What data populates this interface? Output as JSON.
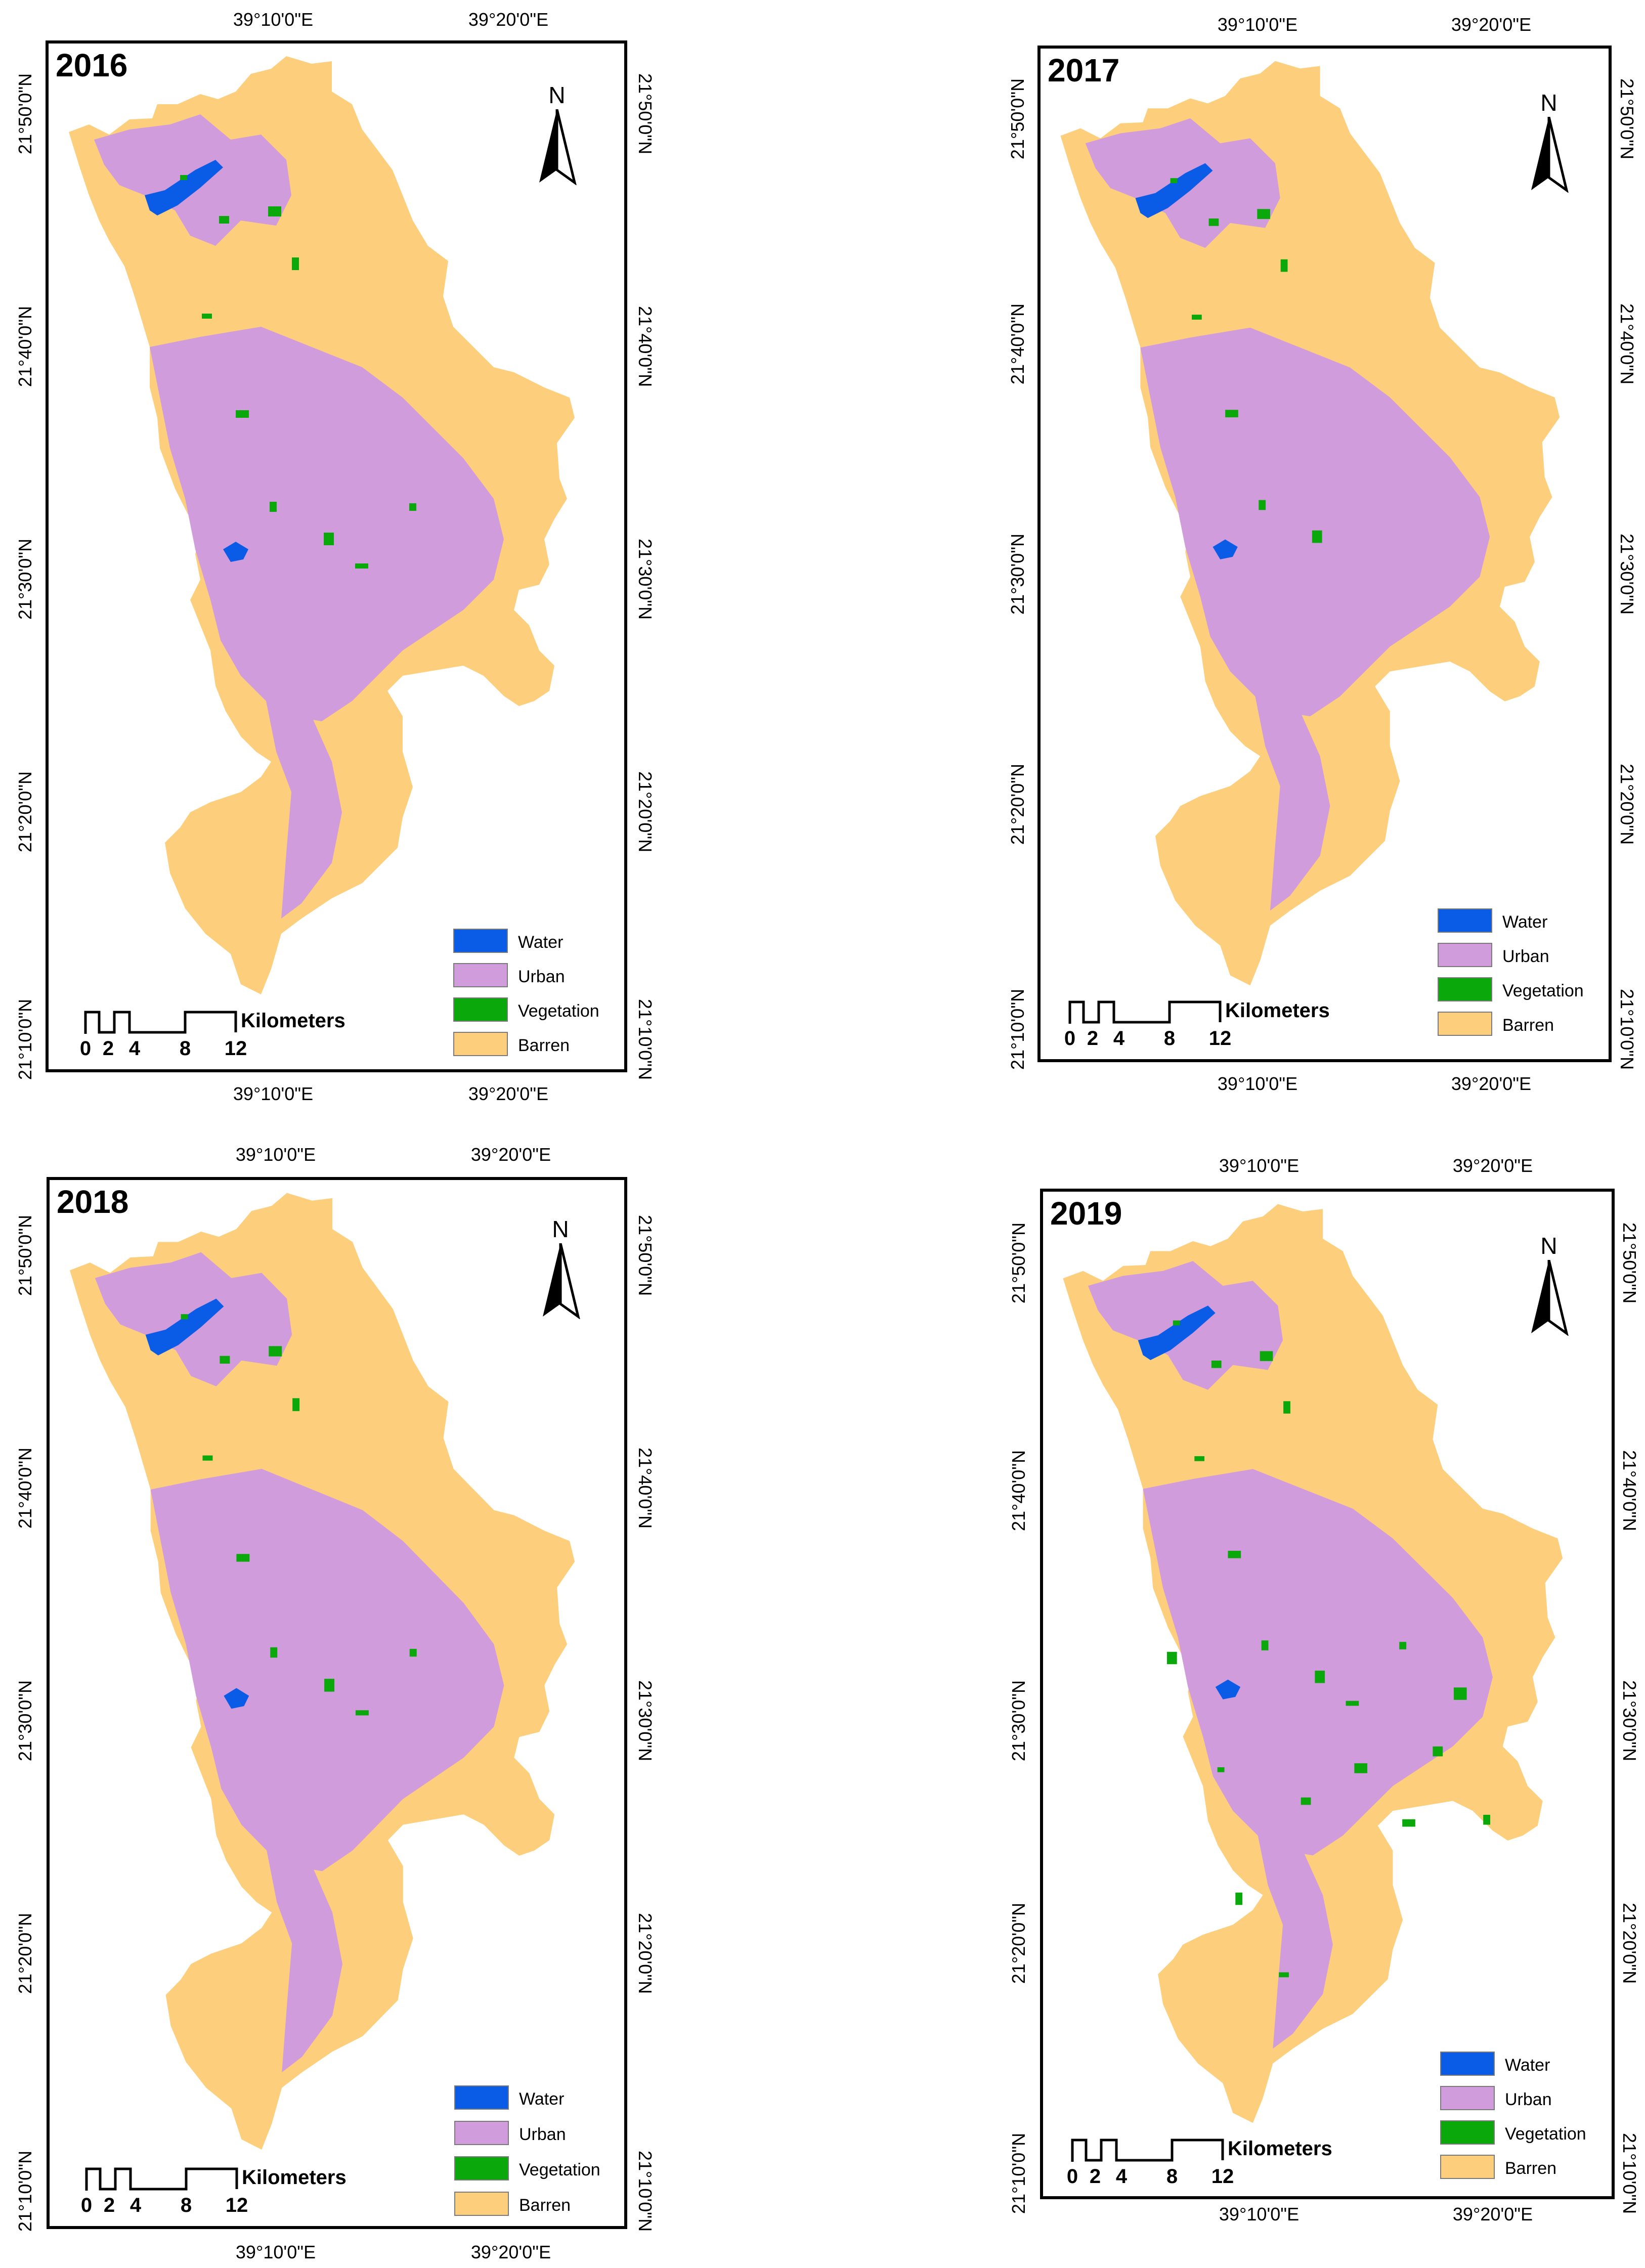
{
  "legend": {
    "items": [
      {
        "key": "water",
        "label": "Water",
        "color": "#0a5ce6"
      },
      {
        "key": "urban",
        "label": "Urban",
        "color": "#d09cdc"
      },
      {
        "key": "vegetation",
        "label": "Vegetation",
        "color": "#0aa80a"
      },
      {
        "key": "barren",
        "label": "Barren",
        "color": "#fdcf7d"
      }
    ]
  },
  "north_arrow": {
    "label": "N"
  },
  "scale_bar": {
    "unit": "Kilometers",
    "ticks": [
      "0",
      "2",
      "4",
      "8",
      "12"
    ]
  },
  "axes": {
    "lon_labels": [
      "39°10'0\"E",
      "39°20'0\"E"
    ],
    "lat_labels": [
      "21°50'0\"N",
      "21°40'0\"N",
      "21°30'0\"N",
      "21°20'0\"N",
      "21°10'0\"N"
    ]
  },
  "maps": [
    {
      "year": "2016",
      "lon_position": "top-bottom"
    },
    {
      "year": "2017",
      "lon_position": "top-bottom"
    },
    {
      "year": "2018",
      "lon_position": "top-bottom"
    },
    {
      "year": "2019",
      "lon_position": "top-bottom"
    }
  ],
  "colors": {
    "frame": "#000000",
    "background": "#ffffff"
  }
}
